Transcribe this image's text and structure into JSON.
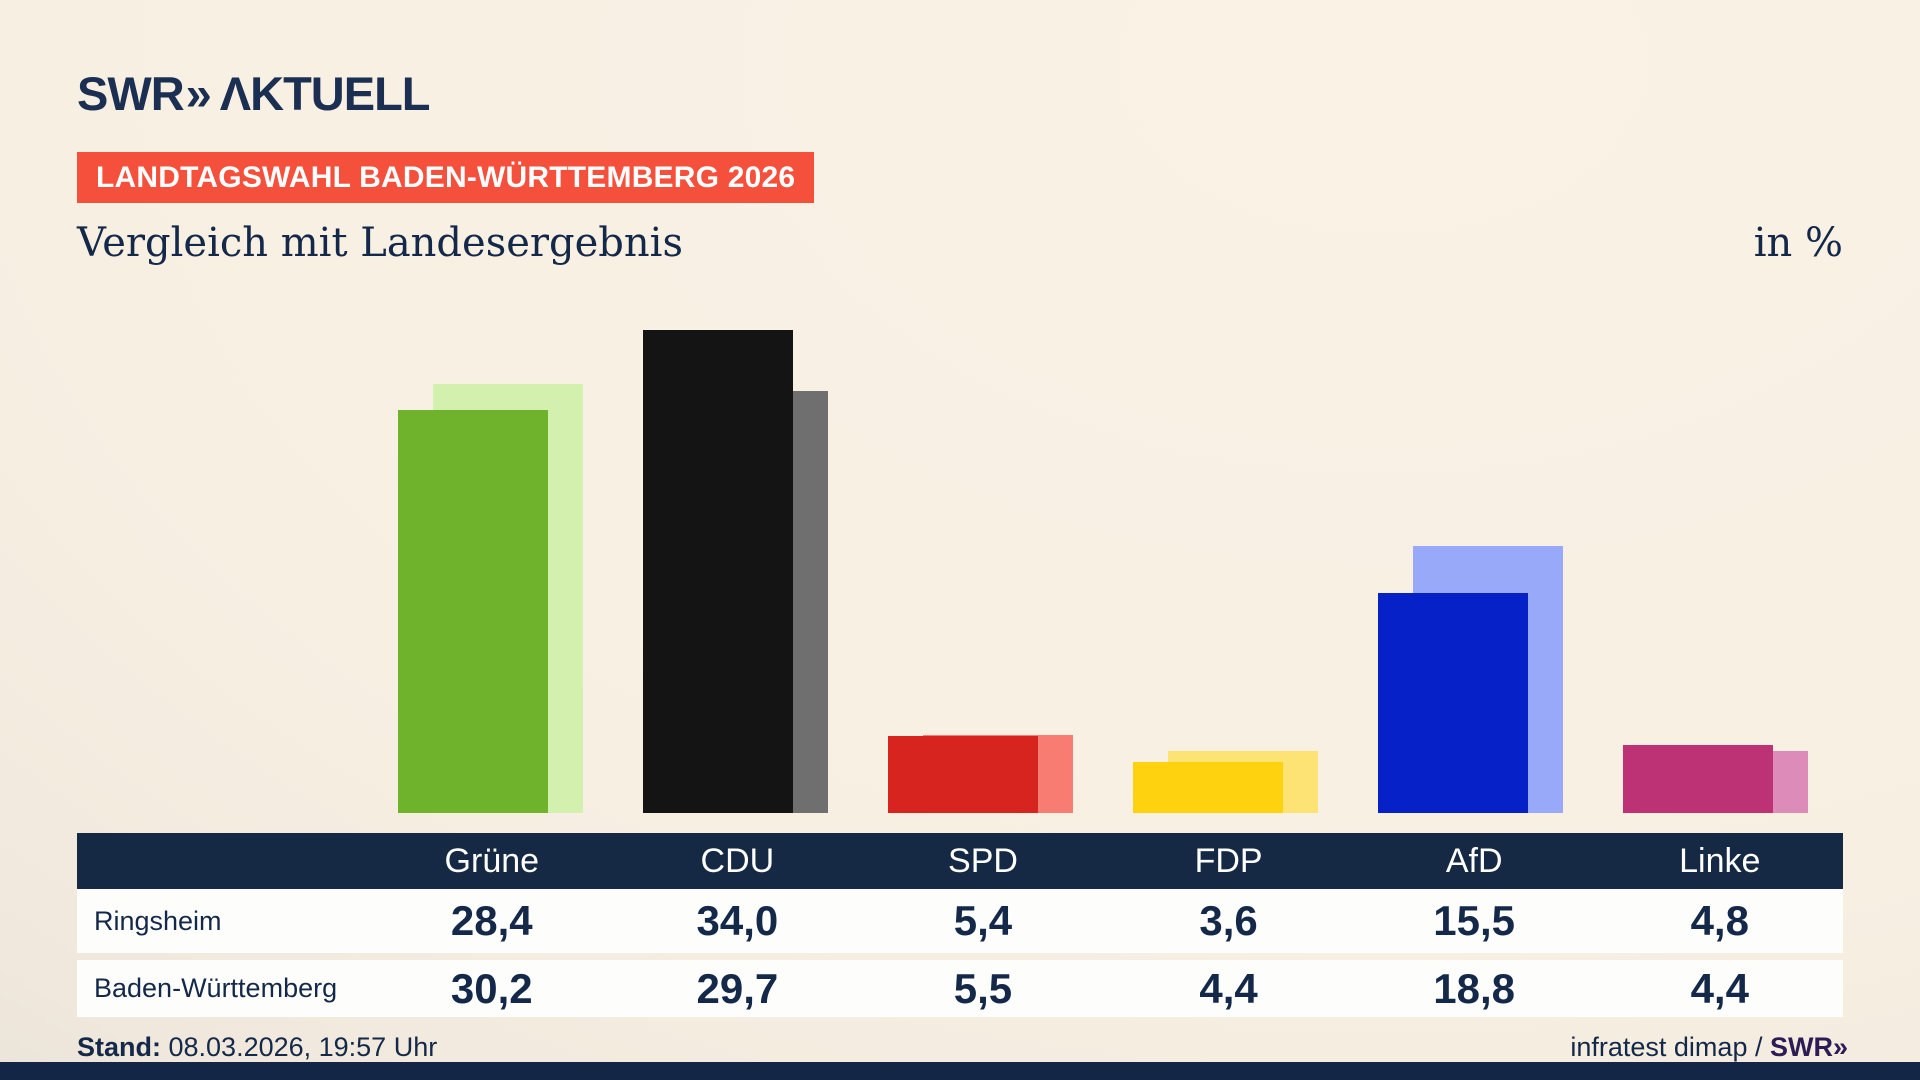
{
  "header": {
    "logo_swr": "SWR",
    "logo_chevrons": "»",
    "logo_aktuell": "ΛKTUELL",
    "badge": "LANDTAGSWAHL BADEN-WÜRTTEMBERG 2026",
    "title": "Vergleich mit Landesergebnis",
    "unit_label": "in %"
  },
  "chart_data": {
    "type": "bar",
    "title": "Vergleich mit Landesergebnis",
    "unit": "%",
    "categories": [
      "Grüne",
      "CDU",
      "SPD",
      "FDP",
      "AfD",
      "Linke"
    ],
    "series": [
      {
        "name": "Ringsheim",
        "role": "foreground",
        "values": [
          28.4,
          34.0,
          5.4,
          3.6,
          15.5,
          4.8
        ]
      },
      {
        "name": "Baden-Württemberg",
        "role": "background",
        "values": [
          30.2,
          29.7,
          5.5,
          4.4,
          18.8,
          4.4
        ]
      }
    ],
    "colors_foreground": [
      "#6fb22c",
      "#141414",
      "#d8241f",
      "#ffd20f",
      "#0721c8",
      "#bd3175"
    ],
    "colors_background": [
      "#d3f0ae",
      "#6f6f6f",
      "#f97c72",
      "#fde274",
      "#98a9f9",
      "#dd8cba"
    ],
    "ylim": [
      0,
      36
    ],
    "grid": false,
    "axes_visible": false,
    "legend": "table-below"
  },
  "table": {
    "columns": [
      "Grüne",
      "CDU",
      "SPD",
      "FDP",
      "AfD",
      "Linke"
    ],
    "rows": [
      {
        "label": "Ringsheim",
        "values": [
          "28,4",
          "34,0",
          "5,4",
          "3,6",
          "15,5",
          "4,8"
        ]
      },
      {
        "label": "Baden-Württemberg",
        "values": [
          "30,2",
          "29,7",
          "5,5",
          "4,4",
          "18,8",
          "4,4"
        ]
      }
    ]
  },
  "footer": {
    "stand_label": "Stand:",
    "stand_value": " 08.03.2026, 19:57 Uhr",
    "source_text": "infratest dimap / ",
    "source_brand": "SWR",
    "source_brand_chevrons": "»"
  },
  "colors": {
    "accent_navy": "#14294a",
    "table_header_navy": "#152944",
    "badge_red": "#f4503c",
    "background_cream": "#f7efe2",
    "background_gray": "#c3bfb9",
    "brand_purple": "#2d1b55"
  }
}
